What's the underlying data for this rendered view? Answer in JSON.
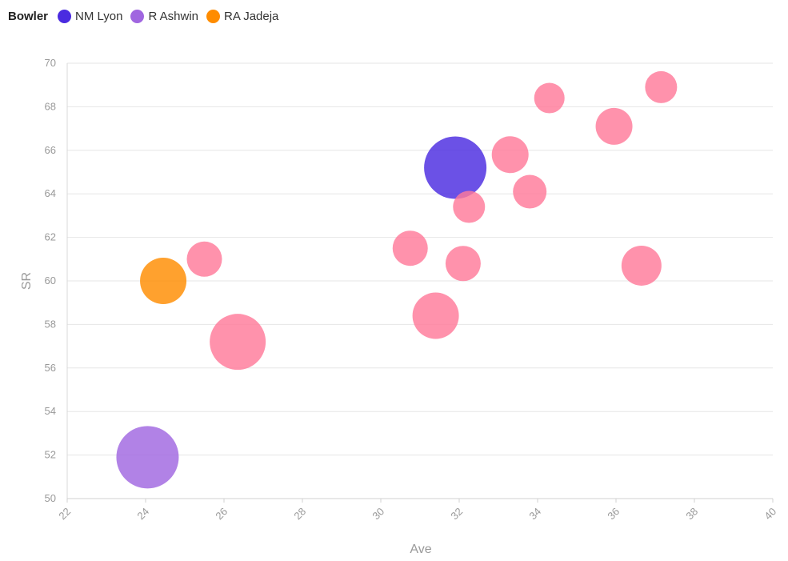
{
  "legend": {
    "title": "Bowler",
    "items": [
      {
        "label": "NM Lyon",
        "color": "#4A2BE0"
      },
      {
        "label": "R Ashwin",
        "color": "#A066E0"
      },
      {
        "label": "RA Jadeja",
        "color": "#FF8C00"
      }
    ]
  },
  "chart_data": {
    "type": "scatter",
    "variant": "bubble",
    "xlabel": "Ave",
    "ylabel": "SR",
    "xlim": [
      22,
      40
    ],
    "ylim": [
      50,
      70
    ],
    "xticks": [
      22,
      24,
      26,
      28,
      30,
      32,
      34,
      36,
      38,
      40
    ],
    "yticks": [
      50,
      52,
      54,
      56,
      58,
      60,
      62,
      64,
      66,
      68,
      70
    ],
    "grid": true,
    "legend_position": "top-left",
    "default_color": "#FF7A9A",
    "points": [
      {
        "x": 24.05,
        "y": 51.9,
        "size": 39,
        "series": "R Ashwin",
        "color": "#A066E0"
      },
      {
        "x": 24.45,
        "y": 60.0,
        "size": 29,
        "series": "RA Jadeja",
        "color": "#FF8C00"
      },
      {
        "x": 31.9,
        "y": 65.2,
        "size": 39,
        "series": "NM Lyon",
        "color": "#4A2BE0"
      },
      {
        "x": 25.5,
        "y": 61.0,
        "size": 22
      },
      {
        "x": 26.35,
        "y": 57.2,
        "size": 35
      },
      {
        "x": 30.75,
        "y": 61.5,
        "size": 22
      },
      {
        "x": 31.4,
        "y": 58.4,
        "size": 29
      },
      {
        "x": 32.1,
        "y": 60.8,
        "size": 22
      },
      {
        "x": 32.25,
        "y": 63.4,
        "size": 20
      },
      {
        "x": 33.3,
        "y": 65.8,
        "size": 23
      },
      {
        "x": 33.8,
        "y": 64.1,
        "size": 21
      },
      {
        "x": 34.3,
        "y": 68.4,
        "size": 19
      },
      {
        "x": 35.95,
        "y": 67.1,
        "size": 23
      },
      {
        "x": 36.65,
        "y": 60.7,
        "size": 25
      },
      {
        "x": 37.15,
        "y": 68.9,
        "size": 20
      }
    ]
  }
}
